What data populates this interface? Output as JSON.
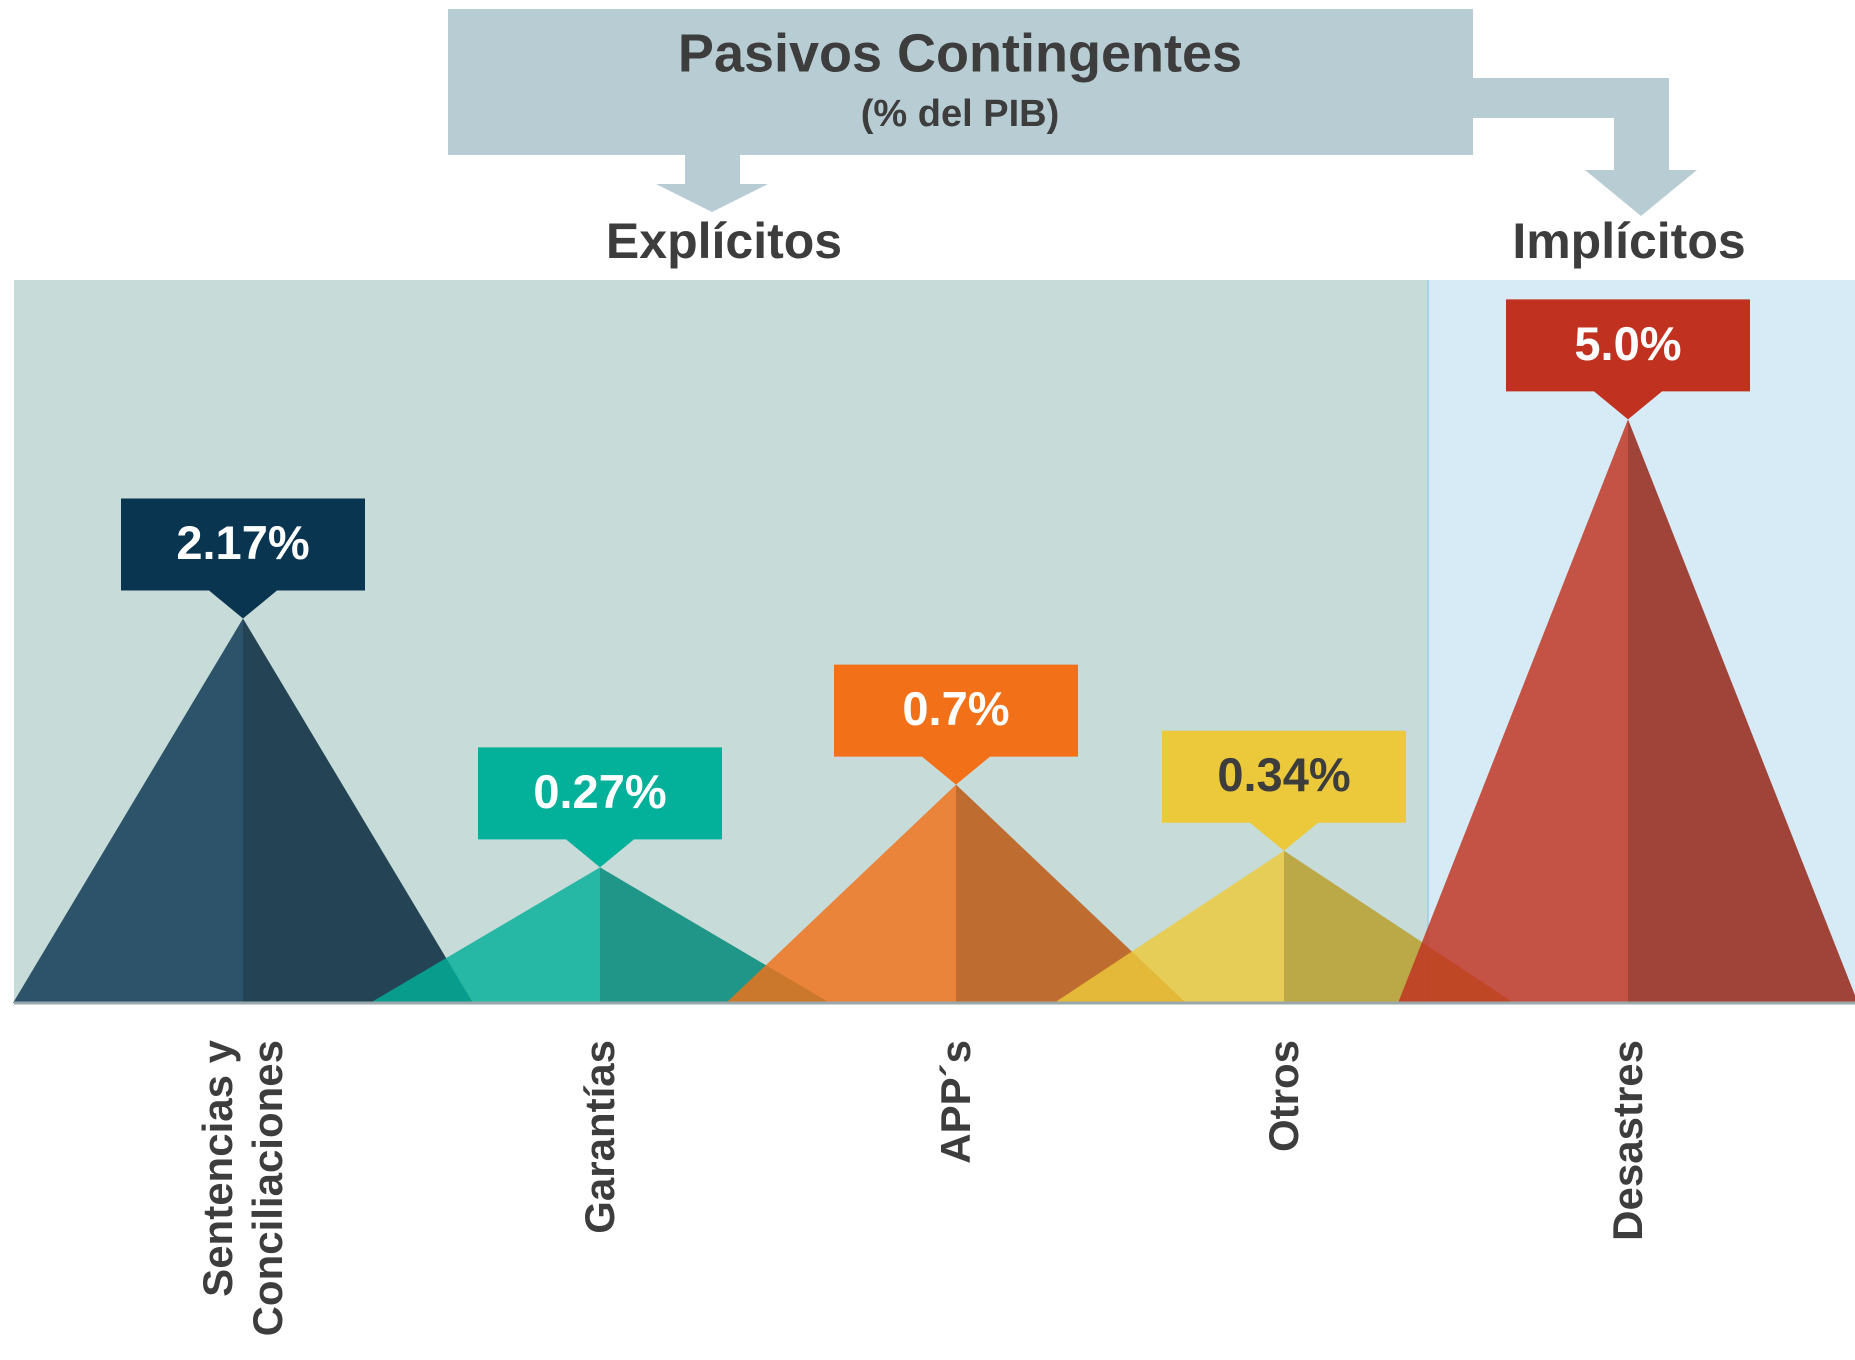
{
  "chart_data": {
    "type": "peak",
    "title": "Pasivos Contingentes",
    "subtitle": "(% del PIB)",
    "groups": [
      "Explícitos",
      "Implícitos"
    ],
    "categories": [
      "Sentencias y Conciliaciones",
      "Garantías",
      "APP´s",
      "Otros",
      "Desastres"
    ],
    "values": [
      2.17,
      0.27,
      0.7,
      0.34,
      5.0
    ],
    "value_labels": [
      "2.17%",
      "0.27%",
      "0.7%",
      "0.34%",
      "5.0%"
    ],
    "colors": [
      "#0a3551",
      "#03b09a",
      "#f27018",
      "#ecc93a",
      "#c0311f"
    ],
    "value_label_colors": [
      "#ffffff",
      "#ffffff",
      "#ffffff",
      "#3d3d3d",
      "#ffffff"
    ],
    "scale": "sqrt"
  }
}
